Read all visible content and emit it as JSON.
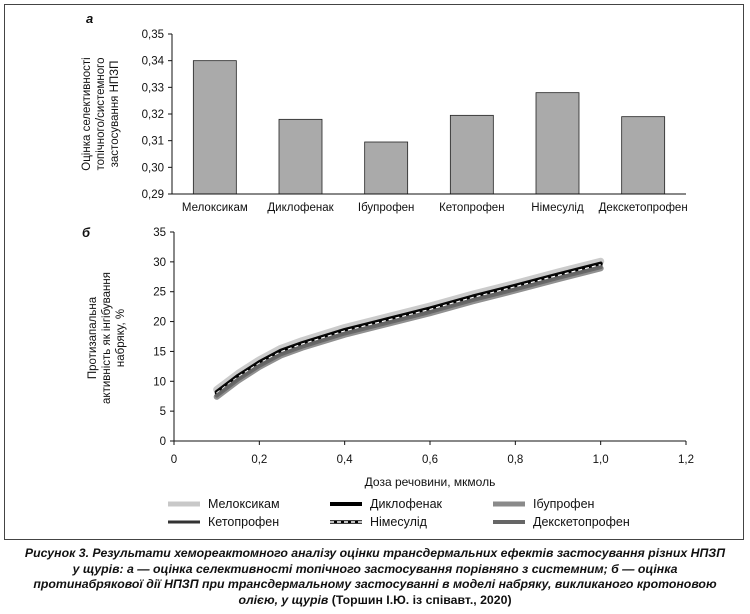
{
  "chart_data": [
    {
      "type": "bar",
      "panel_label": "а",
      "ylabel": "Оцінка селективності топічного/системного застосування НПЗП",
      "ylabel_lines": [
        "Оцінка селективності",
        "топічного/системного",
        "застосування НПЗП"
      ],
      "categories": [
        "Мелоксикам",
        "Диклофенак",
        "Ібупрофен",
        "Кетопрофен",
        "Німесулід",
        "Декскетопрофен"
      ],
      "values": [
        0.34,
        0.318,
        0.3095,
        0.3195,
        0.328,
        0.319
      ],
      "ylim": [
        0.29,
        0.35
      ],
      "yticks": [
        "0,29",
        "0,30",
        "0,31",
        "0,32",
        "0,33",
        "0,34",
        "0,35"
      ],
      "ytick_values": [
        0.29,
        0.3,
        0.31,
        0.32,
        0.33,
        0.34,
        0.35
      ],
      "bar_color": "#aaaaaa"
    },
    {
      "type": "line",
      "panel_label": "б",
      "xlabel": "Доза речовини, мкмоль",
      "ylabel": "Протизапальна активність як інгібування набряку, %",
      "ylabel_lines": [
        "Протизапальна",
        "активність як інгібування",
        "набряку, %"
      ],
      "xlim": [
        0,
        1.2
      ],
      "ylim": [
        0,
        35
      ],
      "xticks": [
        "0",
        "0,2",
        "0,4",
        "0,6",
        "0,8",
        "1,0",
        "1,2"
      ],
      "xtick_values": [
        0,
        0.2,
        0.4,
        0.6,
        0.8,
        1.0,
        1.2
      ],
      "yticks": [
        "0",
        "5",
        "10",
        "15",
        "20",
        "25",
        "30",
        "35"
      ],
      "ytick_values": [
        0,
        5,
        10,
        15,
        20,
        25,
        30,
        35
      ],
      "x": [
        0.1,
        0.15,
        0.2,
        0.25,
        0.3,
        0.4,
        0.5,
        0.6,
        0.7,
        0.8,
        0.9,
        1.0
      ],
      "series": [
        {
          "name": "Мелоксикам",
          "color": "#c8c8c8",
          "width": 7,
          "dash": "",
          "values": [
            8.6,
            11.3,
            13.6,
            15.5,
            16.8,
            19.0,
            20.8,
            22.6,
            24.6,
            26.4,
            28.3,
            30.1
          ]
        },
        {
          "name": "Диклофенак",
          "color": "#000000",
          "width": 4,
          "dash": "",
          "values": [
            8.2,
            10.9,
            13.2,
            15.1,
            16.4,
            18.6,
            20.4,
            22.2,
            24.2,
            26.0,
            27.9,
            29.7
          ]
        },
        {
          "name": "Ібупрофен",
          "color": "#8a8a8a",
          "width": 6,
          "dash": "",
          "values": [
            7.4,
            10.1,
            12.4,
            14.3,
            15.6,
            17.8,
            19.6,
            21.4,
            23.4,
            25.2,
            27.1,
            28.9
          ]
        },
        {
          "name": "Кетопрофен",
          "color": "#333333",
          "width": 3,
          "dash": "",
          "values": [
            7.8,
            10.5,
            12.8,
            14.7,
            16.0,
            18.2,
            20.0,
            21.8,
            23.8,
            25.6,
            27.5,
            29.3
          ]
        },
        {
          "name": "Німесулід",
          "color": "#ffffff",
          "width": 1.6,
          "dash": "4,3",
          "values": [
            8.0,
            10.7,
            13.0,
            14.9,
            16.2,
            18.4,
            20.2,
            22.0,
            24.0,
            25.8,
            27.7,
            29.5
          ]
        },
        {
          "name": "Декскетопрофен",
          "color": "#666666",
          "width": 4,
          "dash": "",
          "values": [
            7.6,
            10.3,
            12.6,
            14.5,
            15.8,
            18.0,
            19.8,
            21.6,
            23.6,
            25.4,
            27.3,
            29.1
          ]
        }
      ],
      "legend_placement": "bottom"
    }
  ],
  "caption": {
    "text": "Рисунок 3. Результати хемореактомного аналізу оцінки трансдермальних ефектів застосування різних НПЗП у щурів: а — оцінка селективності топічного застосування порівняно з системним; б — оцінка протинабрякової дії НПЗП при трансдермальному застосуванні в моделі набряку, викликаного кротоновою олією, у щурів",
    "source": "(Торшин І.Ю. із співавт., 2020)"
  }
}
